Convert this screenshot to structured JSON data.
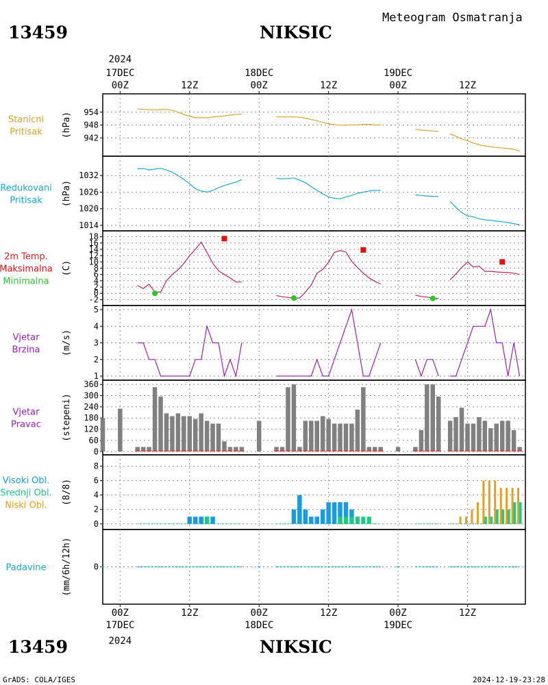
{
  "header": {
    "station_id": "13459",
    "station_name": "NIKSIC",
    "product": "Meteogram Osmatranja"
  },
  "footer": {
    "station_id": "13459",
    "station_name": "NIKSIC",
    "credit": "GrADS: COLA/IGES",
    "timestamp": "2024-12-19-23:28"
  },
  "time_axis": {
    "top": {
      "year": "2024",
      "ticks": [
        {
          "h": 0,
          "lines": [
            "17DEC",
            "00Z"
          ]
        },
        {
          "h": 12,
          "lines": [
            "12Z"
          ]
        },
        {
          "h": 24,
          "lines": [
            "18DEC",
            "00Z"
          ]
        },
        {
          "h": 36,
          "lines": [
            "12Z"
          ]
        },
        {
          "h": 48,
          "lines": [
            "19DEC",
            "00Z"
          ]
        },
        {
          "h": 60,
          "lines": [
            "12Z"
          ]
        }
      ]
    },
    "bottom": {
      "year": "2024",
      "ticks": [
        {
          "h": 0,
          "lines": [
            "00Z",
            "17DEC"
          ]
        },
        {
          "h": 12,
          "lines": [
            "12Z"
          ]
        },
        {
          "h": 24,
          "lines": [
            "00Z",
            "18DEC"
          ]
        },
        {
          "h": 36,
          "lines": [
            "12Z"
          ]
        },
        {
          "h": 48,
          "lines": [
            "00Z",
            "19DEC"
          ]
        },
        {
          "h": 60,
          "lines": [
            "12Z"
          ]
        }
      ]
    },
    "x_range_hours": [
      -3,
      70
    ]
  },
  "colors": {
    "station_pressure": "#e0a030",
    "reduced_pressure": "#1aa8d8",
    "temp_label": "#e02020",
    "tmax": "#e01010",
    "tmin": "#22cc22",
    "temp_line": "#c02060",
    "wind": "#9a20b8",
    "wind_dir_bar": "#808080",
    "wind_dir_calm": "#e04040",
    "cloud_high": "#1a9be0",
    "cloud_mid": "#20c880",
    "cloud_low": "#e0a020",
    "precip": "#1aa8c8",
    "grid": "#909090"
  },
  "chart_data": [
    {
      "id": "station_pressure",
      "type": "line",
      "label_lines": [
        "Stanicni",
        "Pritisak"
      ],
      "ylabel": "(hPa)",
      "yticks": [
        942,
        948,
        954
      ],
      "ylim": [
        936,
        960
      ],
      "series": [
        {
          "x": [
            3,
            4,
            5,
            6,
            7,
            8,
            9,
            10,
            11,
            12,
            13,
            14,
            15,
            16,
            17,
            18,
            19,
            20,
            21
          ],
          "y": [
            955.5,
            955.3,
            955.2,
            955.1,
            955.2,
            955.3,
            954.9,
            954.0,
            953.0,
            952.0,
            951.5,
            951.4,
            951.4,
            951.7,
            952.0,
            952.3,
            952.6,
            952.9,
            953.0
          ]
        },
        {
          "x": [
            27,
            28,
            29,
            30,
            31,
            32,
            33,
            34,
            35,
            36,
            37,
            38,
            39,
            40,
            41,
            42,
            43,
            44,
            45
          ],
          "y": [
            951.8,
            951.8,
            951.8,
            951.8,
            951.6,
            951.2,
            950.6,
            950.0,
            949.2,
            948.6,
            948.1,
            947.9,
            947.9,
            948.1,
            948.1,
            948.3,
            948.3,
            948.1,
            948.0
          ]
        },
        {
          "x": [
            51,
            52,
            53,
            54,
            55
          ],
          "y": [
            946.0,
            945.6,
            945.4,
            945.2,
            945.0
          ]
        },
        {
          "x": [
            57,
            58,
            59,
            60,
            61,
            62,
            63,
            64,
            65,
            66,
            67,
            68,
            69
          ],
          "y": [
            943.8,
            942.8,
            941.5,
            940.6,
            939.6,
            938.8,
            938.2,
            937.9,
            937.5,
            937.2,
            937.1,
            936.6,
            935.8
          ]
        }
      ]
    },
    {
      "id": "reduced_pressure",
      "type": "line",
      "label_lines": [
        "Redukovani",
        "Pritisak"
      ],
      "ylabel": "(hPa)",
      "yticks": [
        1014,
        1020,
        1026,
        1032
      ],
      "ylim": [
        1013,
        1037
      ],
      "series": [
        {
          "x": [
            3,
            4,
            5,
            6,
            7,
            8,
            9,
            10,
            11,
            12,
            13,
            14,
            15,
            16,
            17,
            18,
            19,
            20,
            21
          ],
          "y": [
            1034.4,
            1034.5,
            1034.0,
            1034.3,
            1034.6,
            1034.0,
            1033.2,
            1032.0,
            1030.6,
            1029.0,
            1027.2,
            1026.4,
            1026.0,
            1026.6,
            1027.6,
            1028.4,
            1029.0,
            1029.6,
            1030.5
          ]
        },
        {
          "x": [
            27,
            28,
            29,
            30,
            31,
            32,
            33,
            34,
            35,
            36,
            37,
            38,
            39,
            40,
            41,
            42,
            43,
            44,
            45
          ],
          "y": [
            1031.0,
            1030.8,
            1030.9,
            1031.1,
            1030.3,
            1029.4,
            1028.0,
            1026.6,
            1025.4,
            1024.2,
            1023.8,
            1023.6,
            1024.2,
            1024.8,
            1025.6,
            1026.0,
            1026.4,
            1026.6,
            1026.6
          ]
        },
        {
          "x": [
            51,
            52,
            53,
            54,
            55
          ],
          "y": [
            1025.0,
            1024.8,
            1024.6,
            1024.5,
            1024.4
          ]
        },
        {
          "x": [
            57,
            58,
            59,
            60,
            61,
            62,
            63,
            64,
            65,
            66,
            67,
            68,
            69
          ],
          "y": [
            1022.6,
            1020.5,
            1018.6,
            1017.4,
            1017.1,
            1016.4,
            1016.0,
            1015.8,
            1015.5,
            1015.3,
            1015.0,
            1014.6,
            1014.2
          ]
        }
      ]
    },
    {
      "id": "temperature",
      "type": "line",
      "label_lines": [
        "2m Temp.",
        "Maksimalna",
        "Minimalna"
      ],
      "ylabel": "(C)",
      "yticks": [
        -2,
        0,
        2,
        4,
        6,
        8,
        10,
        12,
        14,
        16,
        18
      ],
      "ylim": [
        -3,
        19
      ],
      "series": [
        {
          "x": [
            3,
            4,
            5,
            6,
            7,
            8,
            9,
            10,
            11,
            12,
            13,
            14,
            15,
            16,
            17,
            18,
            19,
            20,
            21
          ],
          "y": [
            2.5,
            1.5,
            2.9,
            0.4,
            0.4,
            4.0,
            6.0,
            7.5,
            9.5,
            12.0,
            14.0,
            16.3,
            13.0,
            9.6,
            7.2,
            6.0,
            4.9,
            3.6,
            3.6
          ]
        },
        {
          "x": [
            27,
            28,
            29,
            30,
            31,
            32,
            33,
            34,
            35,
            36,
            37,
            38,
            39,
            40,
            41,
            42,
            43,
            44,
            45
          ],
          "y": [
            -0.7,
            -1.1,
            -1.3,
            -1.5,
            -1.5,
            0.4,
            2.6,
            6.4,
            7.6,
            9.9,
            13.0,
            13.6,
            13.1,
            10.2,
            8.2,
            6.4,
            4.9,
            3.8,
            3.0
          ]
        },
        {
          "x": [
            51,
            52,
            53,
            54,
            55
          ],
          "y": [
            -0.6,
            -1.0,
            -1.2,
            -1.6,
            -1.6
          ]
        },
        {
          "x": [
            57,
            58,
            59,
            60,
            61,
            62,
            63,
            64,
            65,
            66,
            67,
            68,
            69
          ],
          "y": [
            4.3,
            6.2,
            8.2,
            10.0,
            8.4,
            8.6,
            7.0,
            7.0,
            6.8,
            6.7,
            6.6,
            6.4,
            6.0
          ]
        }
      ],
      "tmax": [
        {
          "x": 18,
          "y": 17.4
        },
        {
          "x": 42,
          "y": 13.8
        },
        {
          "x": 66,
          "y": 10.0
        }
      ],
      "tmin": [
        {
          "x": 6,
          "y": 0.0
        },
        {
          "x": 30,
          "y": -1.5
        },
        {
          "x": 54,
          "y": -1.6
        }
      ]
    },
    {
      "id": "wind_speed",
      "type": "line",
      "label_lines": [
        "Vjetar",
        "Brzina"
      ],
      "ylabel": "(m/s)",
      "yticks": [
        1,
        2,
        3,
        4,
        5
      ],
      "ylim": [
        1,
        5
      ],
      "series": [
        {
          "x": [
            3,
            4,
            5,
            6,
            7,
            8,
            9,
            10,
            11,
            12,
            13,
            14,
            15,
            16,
            17,
            18,
            19,
            20,
            21
          ],
          "y": [
            3,
            3,
            2,
            2,
            1,
            1,
            1,
            1,
            1,
            1,
            2,
            2,
            4,
            3,
            3,
            1,
            2,
            1,
            3
          ]
        },
        {
          "x": [
            27,
            28,
            29,
            30,
            31,
            32,
            33,
            34,
            35,
            36,
            37,
            38,
            39,
            40,
            41,
            42,
            43,
            44,
            45
          ],
          "y": [
            1,
            1,
            1,
            1,
            1,
            1,
            1,
            2,
            1,
            1,
            2,
            3,
            4,
            5,
            3,
            1,
            1,
            2,
            3
          ]
        },
        {
          "x": [
            51,
            52,
            53,
            54,
            55
          ],
          "y": [
            2,
            1,
            2,
            2,
            1
          ]
        },
        {
          "x": [
            57,
            58,
            59,
            60,
            61,
            62,
            63,
            64,
            65,
            66,
            67,
            68,
            69
          ],
          "y": [
            1,
            1,
            2,
            3,
            4,
            4,
            4,
            5,
            3,
            3,
            1,
            3,
            1
          ]
        }
      ]
    },
    {
      "id": "wind_direction",
      "type": "bar",
      "label_lines": [
        "Vjetar",
        "Pravac"
      ],
      "ylabel": "(stepeni)",
      "yticks": [
        0,
        60,
        120,
        180,
        240,
        300,
        360
      ],
      "ylim": [
        -10,
        368
      ],
      "x": [
        -3,
        0,
        3,
        4,
        5,
        6,
        7,
        8,
        9,
        10,
        11,
        12,
        13,
        14,
        15,
        16,
        17,
        18,
        19,
        20,
        21,
        24,
        27,
        28,
        29,
        30,
        31,
        32,
        33,
        34,
        35,
        36,
        37,
        38,
        39,
        40,
        41,
        42,
        43,
        44,
        45,
        48,
        51,
        52,
        53,
        54,
        55,
        57,
        58,
        59,
        60,
        61,
        62,
        63,
        64,
        65,
        66,
        67,
        68,
        69
      ],
      "values": [
        180,
        230,
        25,
        25,
        25,
        345,
        295,
        205,
        190,
        205,
        190,
        190,
        175,
        205,
        165,
        150,
        150,
        55,
        25,
        25,
        25,
        165,
        25,
        25,
        345,
        360,
        25,
        165,
        165,
        165,
        190,
        175,
        150,
        150,
        150,
        150,
        225,
        345,
        25,
        25,
        25,
        25,
        25,
        115,
        360,
        360,
        295,
        165,
        185,
        235,
        150,
        150,
        185,
        165,
        125,
        150,
        165,
        165,
        115,
        25
      ],
      "calm_x": [
        3,
        4,
        5,
        6,
        7,
        8,
        9,
        10,
        11,
        12,
        13,
        14,
        15,
        16,
        17,
        18,
        19,
        20,
        21,
        27,
        28,
        29,
        30,
        31,
        32,
        33,
        34,
        35,
        36,
        37,
        38,
        39,
        40,
        41,
        42,
        43,
        44,
        45,
        51,
        52,
        53,
        54,
        55,
        57,
        58,
        59,
        60,
        61,
        62,
        63,
        64,
        65,
        66,
        67,
        68,
        69
      ]
    },
    {
      "id": "clouds",
      "type": "bar",
      "label_lines": [
        "Visoki Obl.",
        "Srednji Obl.",
        "Niski Obl."
      ],
      "ylabel": "(8/8)",
      "yticks": [
        0,
        2,
        4,
        6,
        8
      ],
      "ylim": [
        -0.4,
        9
      ],
      "series": [
        {
          "name": "Visoki Obl.",
          "x": [
            12,
            13,
            14,
            15,
            16,
            30,
            31,
            32,
            33,
            34,
            35,
            36,
            37,
            38,
            39,
            40
          ],
          "values": [
            1,
            1,
            1,
            1,
            1,
            2,
            4,
            2,
            1,
            1,
            2,
            3,
            3,
            3,
            3,
            2
          ]
        },
        {
          "name": "Srednji Obl.",
          "x": [
            15,
            38,
            39,
            40,
            41,
            42,
            43,
            63,
            64,
            65,
            66,
            67,
            68,
            69
          ],
          "values": [
            1,
            1,
            1,
            1,
            1,
            1,
            1,
            1,
            1,
            2,
            2,
            2,
            3,
            3
          ]
        },
        {
          "name": "Niski Obl.",
          "x": [
            59,
            60,
            61,
            62,
            63,
            64,
            65,
            66,
            67,
            68,
            69
          ],
          "values": [
            1,
            1,
            2,
            3,
            6,
            6,
            6,
            5,
            5,
            5,
            5
          ]
        }
      ],
      "zero_segments": [
        [
          3,
          21
        ],
        [
          27,
          45
        ],
        [
          51,
          55
        ],
        [
          57,
          69
        ]
      ]
    },
    {
      "id": "precipitation",
      "type": "line",
      "label_lines": [
        "Padavine"
      ],
      "ylabel": "(mm/6h/12h)",
      "yticks": [
        0
      ],
      "ylim": [
        -5,
        5
      ],
      "series": [
        {
          "x": [
            3,
            21
          ],
          "y": [
            0,
            0
          ]
        },
        {
          "x": [
            27,
            45
          ],
          "y": [
            0,
            0
          ]
        },
        {
          "x": [
            51,
            55
          ],
          "y": [
            0,
            0
          ]
        },
        {
          "x": [
            57,
            69
          ],
          "y": [
            0,
            0
          ]
        }
      ],
      "markers_x": [
        -3,
        24,
        48
      ]
    }
  ]
}
